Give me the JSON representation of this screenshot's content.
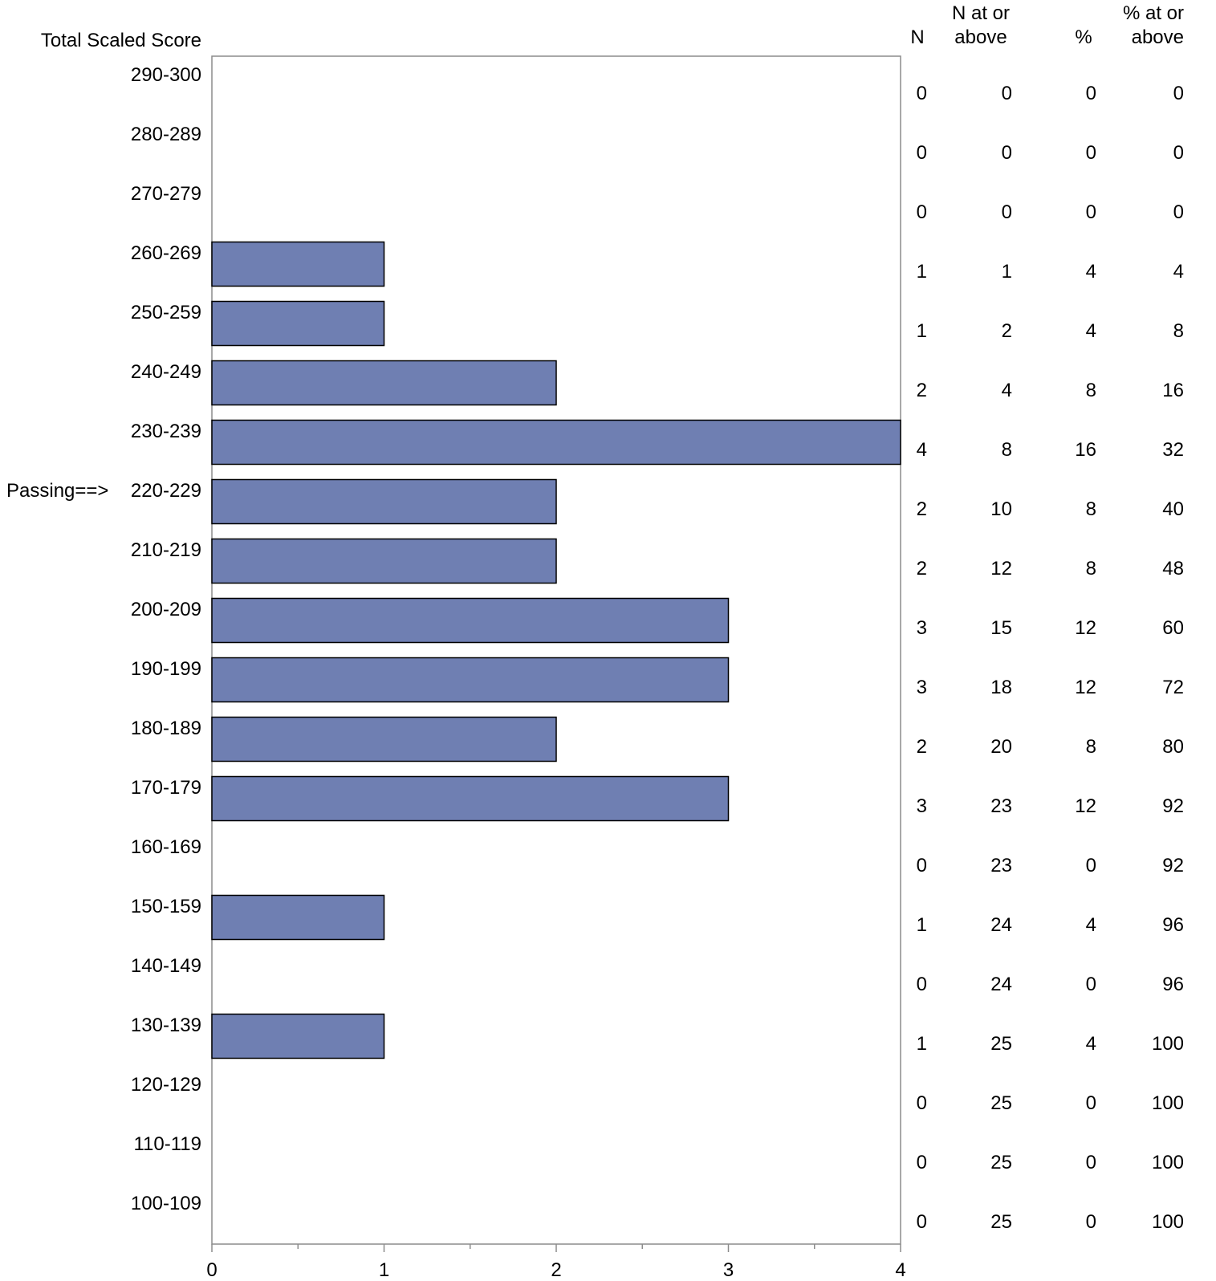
{
  "chart_data": {
    "type": "bar",
    "orientation": "horizontal",
    "y_title": "Total Scaled Score",
    "passing_marker": {
      "label": "Passing==>",
      "category": "220-229"
    },
    "categories": [
      "290-300",
      "280-289",
      "270-279",
      "260-269",
      "250-259",
      "240-249",
      "230-239",
      "220-229",
      "210-219",
      "200-209",
      "190-199",
      "180-189",
      "170-179",
      "160-169",
      "150-159",
      "140-149",
      "130-139",
      "120-129",
      "110-119",
      "100-109"
    ],
    "values": [
      0,
      0,
      0,
      1,
      1,
      2,
      4,
      2,
      2,
      3,
      3,
      2,
      3,
      0,
      1,
      0,
      1,
      0,
      0,
      0
    ],
    "xlim": [
      0,
      4
    ],
    "x_ticks": [
      "0",
      "1",
      "2",
      "3",
      "4"
    ],
    "bar_color": "#6f7fb2",
    "grid": false,
    "table": {
      "headers": [
        {
          "line1": "",
          "line2": "N"
        },
        {
          "line1": "N at or",
          "line2": "above"
        },
        {
          "line1": "",
          "line2": "%"
        },
        {
          "line1": "% at or",
          "line2": "above"
        }
      ],
      "rows": [
        [
          "0",
          "0",
          "0",
          "0"
        ],
        [
          "0",
          "0",
          "0",
          "0"
        ],
        [
          "0",
          "0",
          "0",
          "0"
        ],
        [
          "1",
          "1",
          "4",
          "4"
        ],
        [
          "1",
          "2",
          "4",
          "8"
        ],
        [
          "2",
          "4",
          "8",
          "16"
        ],
        [
          "4",
          "8",
          "16",
          "32"
        ],
        [
          "2",
          "10",
          "8",
          "40"
        ],
        [
          "2",
          "12",
          "8",
          "48"
        ],
        [
          "3",
          "15",
          "12",
          "60"
        ],
        [
          "3",
          "18",
          "12",
          "72"
        ],
        [
          "2",
          "20",
          "8",
          "80"
        ],
        [
          "3",
          "23",
          "12",
          "92"
        ],
        [
          "0",
          "23",
          "0",
          "92"
        ],
        [
          "1",
          "24",
          "4",
          "96"
        ],
        [
          "0",
          "24",
          "0",
          "96"
        ],
        [
          "1",
          "25",
          "4",
          "100"
        ],
        [
          "0",
          "25",
          "0",
          "100"
        ],
        [
          "0",
          "25",
          "0",
          "100"
        ],
        [
          "0",
          "25",
          "0",
          "100"
        ]
      ]
    }
  }
}
